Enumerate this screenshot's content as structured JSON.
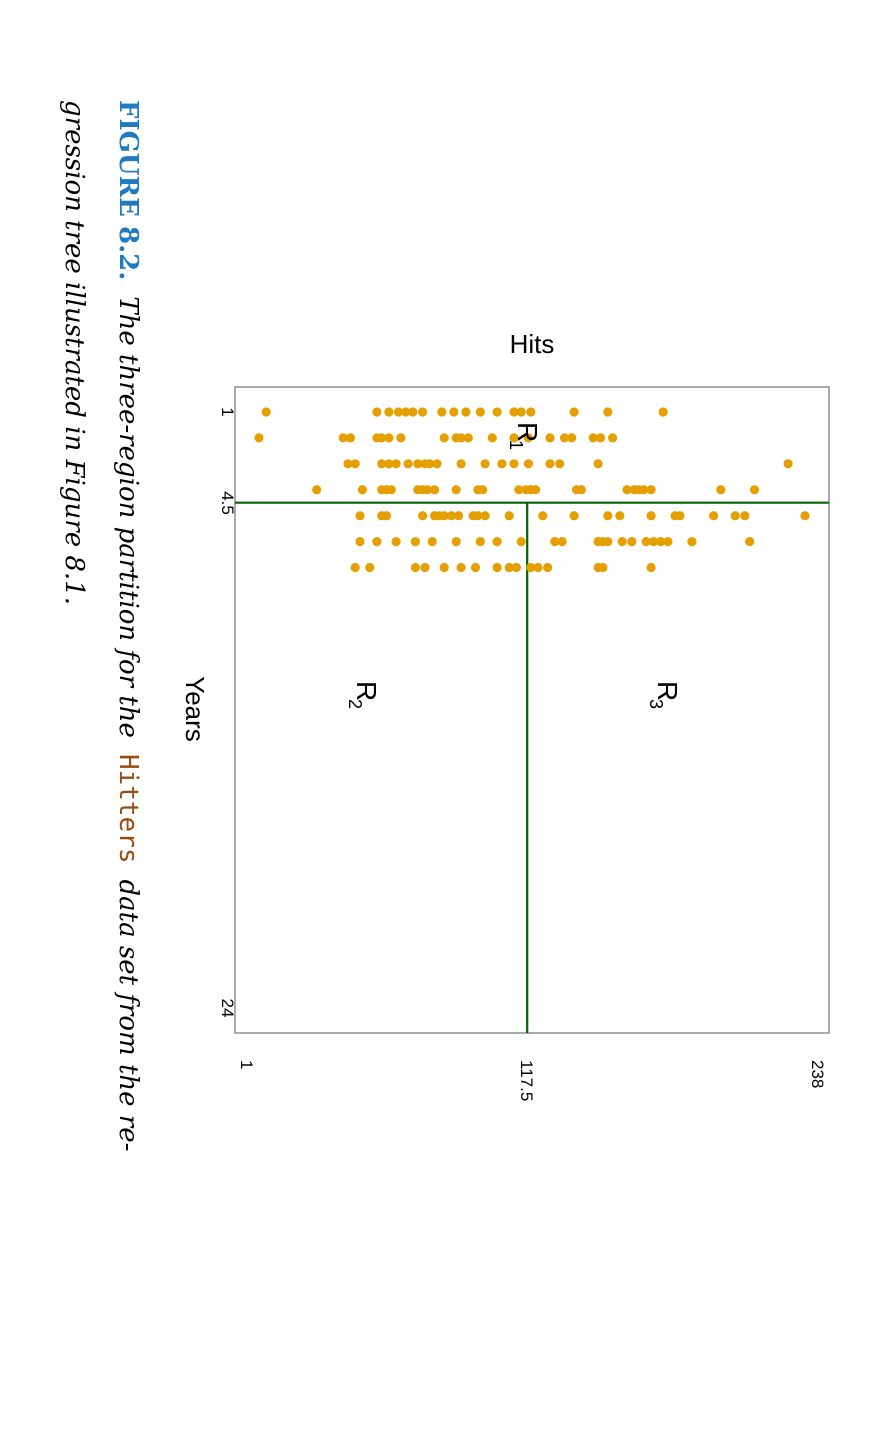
{
  "colors": {
    "points": "#E69F00",
    "split_lines": "#006400",
    "frame": "#aaaaaa",
    "caption_label": "#1f7ac2",
    "caption_code": "#9a4a10"
  },
  "chart_data": {
    "type": "scatter",
    "xlabel": "Years",
    "ylabel": "Hits",
    "x_ticks": [
      "1",
      "4.5",
      "24"
    ],
    "y_ticks": [
      "1",
      "117.5",
      "238"
    ],
    "xlim": [
      1,
      24
    ],
    "ylim": [
      1,
      238
    ],
    "splits": {
      "years": 4.5,
      "hits": 117.5
    },
    "region_labels": [
      {
        "letter": "R",
        "sub": "1"
      },
      {
        "letter": "R",
        "sub": "2"
      },
      {
        "letter": "R",
        "sub": "3"
      }
    ],
    "region_anchor_values": [
      {
        "years": 2.0,
        "hits": 117.5
      },
      {
        "years": 12.0,
        "hits": 50
      },
      {
        "years": 12.0,
        "hits": 178
      }
    ],
    "grid": false,
    "orientation": "figure rotated 90 degrees clockwise",
    "points": [
      [
        1,
        9
      ],
      [
        1,
        55
      ],
      [
        1,
        60
      ],
      [
        1,
        64
      ],
      [
        1,
        67
      ],
      [
        1,
        70
      ],
      [
        1,
        74
      ],
      [
        1,
        82
      ],
      [
        1,
        87
      ],
      [
        1,
        92
      ],
      [
        1,
        98
      ],
      [
        1,
        105
      ],
      [
        1,
        112
      ],
      [
        1,
        115
      ],
      [
        1,
        119
      ],
      [
        1,
        137
      ],
      [
        1,
        151
      ],
      [
        1,
        174
      ],
      [
        2,
        6
      ],
      [
        2,
        41
      ],
      [
        2,
        44
      ],
      [
        2,
        55
      ],
      [
        2,
        57
      ],
      [
        2,
        60
      ],
      [
        2,
        65
      ],
      [
        2,
        83
      ],
      [
        2,
        88
      ],
      [
        2,
        90
      ],
      [
        2,
        93
      ],
      [
        2,
        103
      ],
      [
        2,
        112
      ],
      [
        2,
        118
      ],
      [
        2,
        127
      ],
      [
        2,
        133
      ],
      [
        2,
        136
      ],
      [
        2,
        145
      ],
      [
        2,
        148
      ],
      [
        2,
        153
      ],
      [
        3,
        43
      ],
      [
        3,
        46
      ],
      [
        3,
        57
      ],
      [
        3,
        60
      ],
      [
        3,
        63
      ],
      [
        3,
        68
      ],
      [
        3,
        72
      ],
      [
        3,
        75
      ],
      [
        3,
        77
      ],
      [
        3,
        80
      ],
      [
        3,
        90
      ],
      [
        3,
        100
      ],
      [
        3,
        107
      ],
      [
        3,
        112
      ],
      [
        3,
        118
      ],
      [
        3,
        127
      ],
      [
        3,
        131
      ],
      [
        3,
        147
      ],
      [
        3,
        226
      ],
      [
        4,
        30
      ],
      [
        4,
        49
      ],
      [
        4,
        57
      ],
      [
        4,
        59
      ],
      [
        4,
        61
      ],
      [
        4,
        72
      ],
      [
        4,
        74
      ],
      [
        4,
        76
      ],
      [
        4,
        79
      ],
      [
        4,
        88
      ],
      [
        4,
        97
      ],
      [
        4,
        99
      ],
      [
        4,
        114
      ],
      [
        4,
        117
      ],
      [
        4,
        119
      ],
      [
        4,
        121
      ],
      [
        4,
        138
      ],
      [
        4,
        140
      ],
      [
        4,
        159
      ],
      [
        4,
        162
      ],
      [
        4,
        164
      ],
      [
        4,
        166
      ],
      [
        4,
        169
      ],
      [
        4,
        198
      ],
      [
        4,
        212
      ],
      [
        5,
        48
      ],
      [
        5,
        57
      ],
      [
        5,
        59
      ],
      [
        5,
        74
      ],
      [
        5,
        79
      ],
      [
        5,
        81
      ],
      [
        5,
        83
      ],
      [
        5,
        86
      ],
      [
        5,
        89
      ],
      [
        5,
        95
      ],
      [
        5,
        97
      ],
      [
        5,
        100
      ],
      [
        5,
        110
      ],
      [
        5,
        124
      ],
      [
        5,
        137
      ],
      [
        5,
        151
      ],
      [
        5,
        156
      ],
      [
        5,
        169
      ],
      [
        5,
        179
      ],
      [
        5,
        181
      ],
      [
        5,
        195
      ],
      [
        5,
        204
      ],
      [
        5,
        208
      ],
      [
        5,
        233
      ],
      [
        6,
        48
      ],
      [
        6,
        55
      ],
      [
        6,
        63
      ],
      [
        6,
        71
      ],
      [
        6,
        78
      ],
      [
        6,
        88
      ],
      [
        6,
        98
      ],
      [
        6,
        105
      ],
      [
        6,
        115
      ],
      [
        6,
        129
      ],
      [
        6,
        132
      ],
      [
        6,
        147
      ],
      [
        6,
        149
      ],
      [
        6,
        151
      ],
      [
        6,
        157
      ],
      [
        6,
        161
      ],
      [
        6,
        167
      ],
      [
        6,
        170
      ],
      [
        6,
        173
      ],
      [
        6,
        176
      ],
      [
        6,
        186
      ],
      [
        6,
        210
      ],
      [
        7,
        46
      ],
      [
        7,
        52
      ],
      [
        7,
        71
      ],
      [
        7,
        75
      ],
      [
        7,
        83
      ],
      [
        7,
        90
      ],
      [
        7,
        96
      ],
      [
        7,
        105
      ],
      [
        7,
        110
      ],
      [
        7,
        113
      ],
      [
        7,
        119
      ],
      [
        7,
        122
      ],
      [
        7,
        126
      ],
      [
        7,
        147
      ],
      [
        7,
        149
      ],
      [
        7,
        169
      ]
    ]
  },
  "caption": {
    "label": "FIGURE 8.2.",
    "line1_pre": "The three-region partition for the",
    "code": "Hitters",
    "line1_post": "data set from the re-",
    "line2": "gression tree illustrated in Figure 8.1."
  }
}
